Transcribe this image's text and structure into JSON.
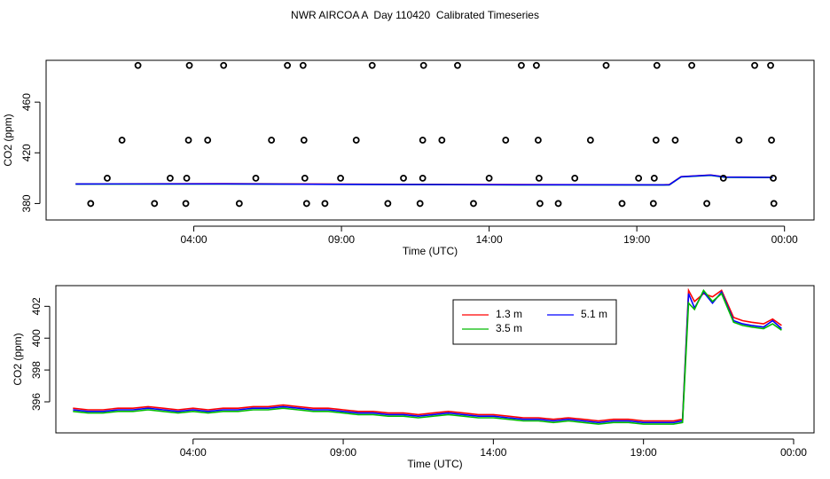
{
  "title": "NWR AIRCOA A  Day 110420  Calibrated Timeseries",
  "chart_data": [
    {
      "type": "scatter",
      "xlabel": "Time (UTC)",
      "ylabel": "CO2 (ppm)",
      "xlim": [
        -1,
        25
      ],
      "ylim": [
        367,
        493
      ],
      "xticks": [
        {
          "value": 4,
          "label": "04:00"
        },
        {
          "value": 9,
          "label": "09:00"
        },
        {
          "value": 14,
          "label": "14:00"
        },
        {
          "value": 19,
          "label": "19:00"
        },
        {
          "value": 24,
          "label": "00:00"
        }
      ],
      "yticks": [
        380,
        420,
        460
      ],
      "points": {
        "color": "#000000",
        "x": [
          0.51,
          2.67,
          3.73,
          5.54,
          7.82,
          8.44,
          10.57,
          11.66,
          13.47,
          15.72,
          16.34,
          18.5,
          19.56,
          21.37,
          23.64,
          1.07,
          3.2,
          3.76,
          6.1,
          7.76,
          8.97,
          11.1,
          11.75,
          14.0,
          15.69,
          16.9,
          19.06,
          19.59,
          21.93,
          23.62,
          1.57,
          3.82,
          4.47,
          6.63,
          7.73,
          9.5,
          11.75,
          12.4,
          14.56,
          15.66,
          17.43,
          19.65,
          20.3,
          22.46,
          23.56,
          2.11,
          3.85,
          5.01,
          7.17,
          7.7,
          10.04,
          11.78,
          12.93,
          15.09,
          15.6,
          17.96,
          19.68,
          20.86,
          22.99,
          23.53
        ],
        "values": [
          380,
          380,
          380,
          380,
          380,
          380,
          380,
          380,
          380,
          380,
          380,
          380,
          380,
          380,
          380,
          400,
          400,
          400,
          400,
          400,
          400,
          400,
          400,
          400,
          400,
          400,
          400,
          400,
          400,
          400,
          430,
          430,
          430,
          430,
          430,
          430,
          430,
          430,
          430,
          430,
          430,
          430,
          430,
          430,
          430,
          489,
          489,
          489,
          489,
          489,
          489,
          489,
          489,
          489,
          489,
          489,
          489,
          489,
          489,
          489
        ]
      },
      "x": [
        0,
        5,
        10,
        15,
        19.9,
        20.1,
        20.5,
        21.5,
        22,
        23.6
      ],
      "series": [
        {
          "color": "#ff0000",
          "values": [
            395.5,
            395.6,
            395.2,
            394.9,
            394.8,
            394.9,
            401.2,
            402.5,
            400.9,
            400.7
          ]
        },
        {
          "color": "#00cc00",
          "values": [
            395.3,
            395.4,
            395.0,
            394.7,
            394.6,
            394.7,
            401.0,
            402.2,
            400.6,
            400.5
          ]
        },
        {
          "color": "#0000ff",
          "values": [
            395.4,
            395.5,
            395.1,
            394.8,
            394.7,
            394.8,
            401.1,
            402.4,
            400.8,
            400.6
          ]
        }
      ]
    },
    {
      "type": "line",
      "xlabel": "Time (UTC)",
      "ylabel": "CO2 (ppm)",
      "xlim": [
        -0.57,
        24.68
      ],
      "ylim": [
        394.05,
        403.3
      ],
      "xticks": [
        {
          "value": 4,
          "label": "04:00"
        },
        {
          "value": 9,
          "label": "09:00"
        },
        {
          "value": 14,
          "label": "14:00"
        },
        {
          "value": 19,
          "label": "19:00"
        },
        {
          "value": 24,
          "label": "00:00"
        }
      ],
      "yticks": [
        396,
        398,
        400,
        402
      ],
      "legend": "top",
      "x": [
        0,
        0.5,
        1,
        1.5,
        2,
        2.5,
        3,
        3.5,
        4,
        4.5,
        5,
        5.5,
        6,
        6.5,
        7,
        7.5,
        8,
        8.5,
        9,
        9.5,
        10,
        10.5,
        11,
        11.5,
        12,
        12.5,
        13,
        13.5,
        14,
        14.5,
        15,
        15.5,
        16,
        16.5,
        17,
        17.5,
        18,
        18.5,
        19,
        19.5,
        20,
        20.3,
        20.5,
        20.7,
        21,
        21.3,
        21.6,
        22,
        22.3,
        22.6,
        23,
        23.3,
        23.6
      ],
      "series": [
        {
          "name": "1.3 m",
          "color": "#ff0000",
          "values": [
            395.6,
            395.5,
            395.5,
            395.6,
            395.6,
            395.7,
            395.6,
            395.5,
            395.6,
            395.5,
            395.6,
            395.6,
            395.7,
            395.7,
            395.8,
            395.7,
            395.6,
            395.6,
            395.5,
            395.4,
            395.4,
            395.3,
            395.3,
            395.2,
            395.3,
            395.4,
            395.3,
            395.2,
            395.2,
            395.1,
            395.0,
            395.0,
            394.9,
            395.0,
            394.9,
            394.8,
            394.9,
            394.9,
            394.8,
            394.8,
            394.8,
            394.9,
            403.0,
            402.3,
            402.8,
            402.6,
            403.0,
            401.3,
            401.1,
            401.0,
            400.9,
            401.2,
            400.8
          ]
        },
        {
          "name": "5.1 m",
          "color": "#0000ff",
          "values": [
            395.5,
            395.4,
            395.4,
            395.5,
            395.5,
            395.6,
            395.5,
            395.4,
            395.5,
            395.4,
            395.5,
            395.5,
            395.6,
            395.6,
            395.7,
            395.6,
            395.5,
            395.5,
            395.4,
            395.3,
            395.3,
            395.2,
            395.2,
            395.1,
            395.2,
            395.3,
            395.2,
            395.1,
            395.1,
            395.0,
            394.9,
            394.9,
            394.8,
            394.9,
            394.8,
            394.7,
            394.8,
            394.8,
            394.7,
            394.7,
            394.7,
            394.8,
            402.8,
            401.9,
            402.9,
            402.2,
            402.9,
            401.1,
            400.9,
            400.8,
            400.7,
            401.1,
            400.6
          ]
        },
        {
          "name": "3.5 m",
          "color": "#00bb00",
          "values": [
            395.4,
            395.3,
            395.3,
            395.4,
            395.4,
            395.5,
            395.4,
            395.3,
            395.4,
            395.3,
            395.4,
            395.4,
            395.5,
            395.5,
            395.6,
            395.5,
            395.4,
            395.4,
            395.3,
            395.2,
            395.2,
            395.1,
            395.1,
            395.0,
            395.1,
            395.2,
            395.1,
            395.0,
            395.0,
            394.9,
            394.8,
            394.8,
            394.7,
            394.8,
            394.7,
            394.6,
            394.7,
            394.7,
            394.6,
            394.6,
            394.6,
            394.7,
            402.2,
            401.8,
            403.0,
            402.3,
            402.8,
            401.0,
            400.8,
            400.7,
            400.6,
            400.9,
            400.5
          ]
        }
      ]
    }
  ]
}
